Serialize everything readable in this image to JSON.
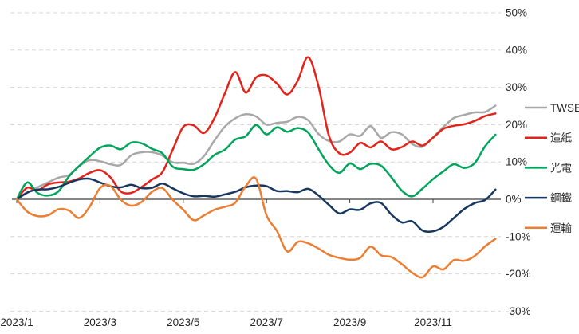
{
  "chart_data": {
    "type": "line",
    "title": "",
    "x_unit": "months since 2023/01 start",
    "x_start": 0,
    "x_step": 0.25,
    "x_axis": {
      "labels": [
        "2023/1",
        "2023/3",
        "2023/5",
        "2023/7",
        "2023/9",
        "2023/11"
      ],
      "tick_months": [
        0,
        2,
        4,
        6,
        8,
        10
      ]
    },
    "y_axis": {
      "labels": [
        "50%",
        "40%",
        "30%",
        "20%",
        "10%",
        "0%",
        "-10%",
        "-20%",
        "-30%"
      ],
      "values": [
        50,
        40,
        30,
        20,
        10,
        0,
        -10,
        -20,
        -30
      ],
      "ylim": [
        -30,
        50
      ],
      "side": "right"
    },
    "grid": "horizontal-dashed",
    "legend": {
      "position": "right",
      "items": [
        "TWSE",
        "造紙",
        "光電",
        "鋼鐵",
        "運輸"
      ]
    },
    "series": [
      {
        "name": "TWSE",
        "color": "#a8a8a8",
        "values": [
          0,
          1.7,
          3.2,
          4.5,
          5.8,
          6.5,
          8.9,
          10.5,
          10.2,
          9.4,
          9.2,
          11.8,
          12.6,
          12.6,
          11.7,
          9.9,
          9.8,
          9.5,
          11.6,
          15.8,
          19.5,
          21.7,
          22.8,
          22.2,
          20.0,
          20.5,
          20.8,
          22.1,
          21.2,
          17.5,
          15.6,
          15.5,
          17.4,
          17.0,
          19.6,
          16.5,
          18.0,
          17.4,
          14.8,
          14.1,
          16.6,
          19.4,
          21.8,
          22.6,
          23.3,
          23.4,
          25.1
        ]
      },
      {
        "name": "造紙",
        "color": "#e2231a",
        "values": [
          0,
          3.1,
          2.4,
          4.0,
          4.5,
          4.7,
          5.6,
          7.1,
          7.8,
          5.9,
          2.1,
          1.7,
          3.3,
          5.3,
          7.3,
          13.4,
          19.4,
          19.8,
          17.8,
          21.8,
          28.4,
          34.1,
          28.6,
          32.7,
          33.2,
          31.0,
          28.1,
          31.8,
          38.1,
          30.2,
          17.0,
          12.3,
          12.5,
          15.1,
          13.9,
          15.5,
          13.4,
          14.0,
          15.5,
          14.4,
          16.5,
          18.9,
          19.7,
          20.1,
          21.0,
          22.3,
          23.0
        ]
      },
      {
        "name": "光電",
        "color": "#00a45a",
        "values": [
          0,
          4.5,
          1.7,
          1.0,
          2.1,
          6.1,
          8.9,
          11.5,
          13.8,
          14.4,
          13.4,
          15.2,
          15.0,
          13.5,
          12.3,
          8.7,
          8.1,
          7.9,
          9.4,
          11.9,
          13.3,
          16.0,
          16.9,
          19.9,
          17.4,
          19.3,
          18.1,
          19.1,
          17.9,
          13.4,
          9.2,
          7.1,
          9.6,
          8.1,
          9.5,
          9.0,
          5.9,
          2.3,
          0.8,
          2.9,
          5.4,
          7.5,
          9.4,
          8.4,
          9.7,
          14.2,
          17.3
        ]
      },
      {
        "name": "鋼鐵",
        "color": "#17375e",
        "values": [
          0,
          1.8,
          2.6,
          2.7,
          3.3,
          4.4,
          5.3,
          5.5,
          4.5,
          3.5,
          3.2,
          3.9,
          3.0,
          3.1,
          4.2,
          2.9,
          1.6,
          0.8,
          0.9,
          0.7,
          1.3,
          2.0,
          3.2,
          3.7,
          3.5,
          2.2,
          2.2,
          1.9,
          2.8,
          1.0,
          -1.5,
          -3.8,
          -2.7,
          -2.8,
          -1.1,
          -1.0,
          -4.1,
          -6.2,
          -5.9,
          -8.4,
          -8.6,
          -7.4,
          -5.0,
          -2.6,
          -1.0,
          -0.2,
          2.6
        ]
      },
      {
        "name": "運輸",
        "color": "#ed7d31",
        "values": [
          0,
          -3.3,
          -4.5,
          -4.3,
          -2.7,
          -3.0,
          -5.0,
          -2.0,
          3.0,
          3.6,
          -0.1,
          -1.7,
          -0.7,
          2.0,
          3.0,
          -0.2,
          -2.8,
          -5.6,
          -4.3,
          -2.8,
          -2.0,
          -0.9,
          3.5,
          5.5,
          -4.3,
          -8.5,
          -14.0,
          -11.4,
          -11.8,
          -13.2,
          -14.9,
          -15.7,
          -16.2,
          -15.7,
          -12.7,
          -15.0,
          -15.5,
          -17.4,
          -19.7,
          -20.9,
          -18.0,
          -18.8,
          -16.3,
          -16.5,
          -15.2,
          -12.6,
          -10.6
        ]
      }
    ],
    "style": {
      "grid_color": "#d5d5d5",
      "axis_color": "#3f3f3f",
      "text_color": "#262626",
      "background": "#ffffff"
    }
  }
}
